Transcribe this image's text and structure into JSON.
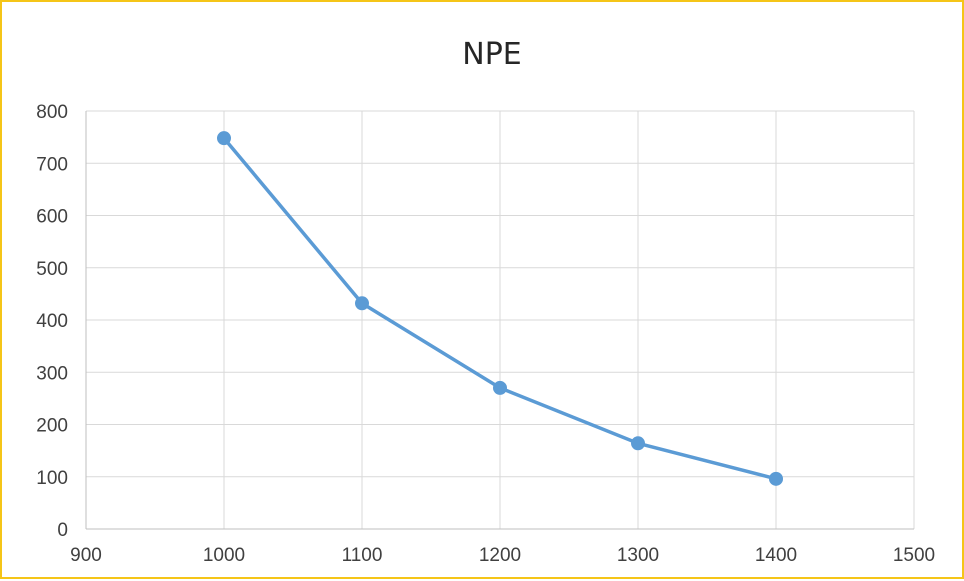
{
  "chart_data": {
    "type": "scatter",
    "title": "NPE",
    "xlabel": "",
    "ylabel": "",
    "xlim": [
      900,
      1500
    ],
    "ylim": [
      0,
      800
    ],
    "xticks": [
      "900",
      "1000",
      "1100",
      "1200",
      "1300",
      "1400",
      "1500"
    ],
    "yticks": [
      "0",
      "100",
      "200",
      "300",
      "400",
      "500",
      "600",
      "700",
      "800"
    ],
    "grid": true,
    "legend": "none",
    "series": [
      {
        "color": "#5b9bd5",
        "mode": "lines+markers",
        "x": [
          1000,
          1100,
          1200,
          1300,
          1400
        ],
        "y": [
          748,
          432,
          270,
          164,
          96
        ]
      }
    ]
  },
  "colors": {
    "frame_border": "#f5c518",
    "gridline": "#d9d9d9",
    "series": "#5b9bd5"
  }
}
